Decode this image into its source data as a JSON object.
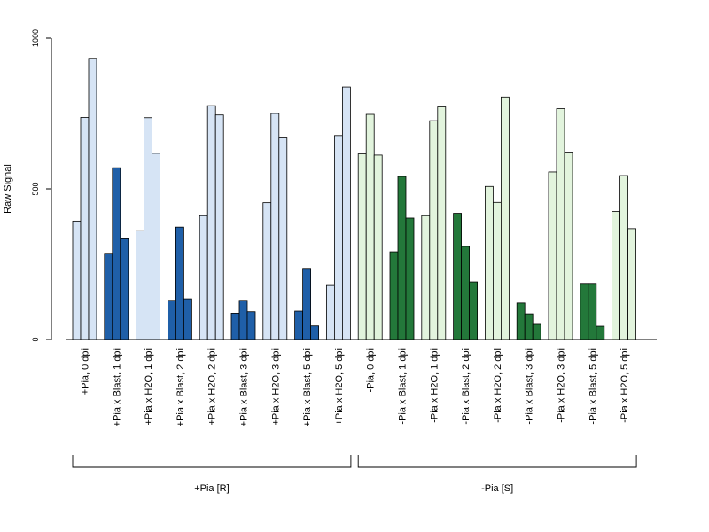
{
  "chart_data": {
    "type": "bar",
    "title": "",
    "xlabel": "",
    "ylabel": "Raw Signal",
    "ylim": [
      0,
      1000
    ],
    "yticks": [
      0,
      500,
      1000
    ],
    "grid": false,
    "legend": "none",
    "categories": [
      "+Pia, 0 dpi",
      "+Pia x Blast, 1 dpi",
      "+Pia x H2O, 1 dpi",
      "+Pia x Blast, 2 dpi",
      "+Pia x H2O, 2 dpi",
      "+Pia x Blast, 3 dpi",
      "+Pia x H2O, 3 dpi",
      "+Pia x Blast, 5 dpi",
      "+Pia x H2O, 5 dpi",
      "-Pia, 0 dpi",
      "-Pia x Blast, 1 dpi",
      "-Pia x H2O, 1 dpi",
      "-Pia x Blast, 2 dpi",
      "-Pia x H2O, 2 dpi",
      "-Pia x Blast, 3 dpi",
      "-Pia x H2O, 3 dpi",
      "-Pia x Blast, 5 dpi",
      "-Pia x H2O, 5 dpi"
    ],
    "replicates": [
      [
        393,
        737,
        933
      ],
      [
        286,
        570,
        337
      ],
      [
        361,
        736,
        618
      ],
      [
        130,
        373,
        135
      ],
      [
        411,
        776,
        745
      ],
      [
        87,
        130,
        92
      ],
      [
        454,
        750,
        669
      ],
      [
        94,
        236,
        45
      ],
      [
        182,
        677,
        838
      ],
      [
        616,
        747,
        612
      ],
      [
        291,
        541,
        403
      ],
      [
        411,
        726,
        772
      ],
      [
        419,
        309,
        191
      ],
      [
        508,
        455,
        805
      ],
      [
        121,
        85,
        53
      ],
      [
        556,
        766,
        622
      ],
      [
        186,
        186,
        44
      ],
      [
        425,
        544,
        368
      ]
    ],
    "bar_colors": [
      "#d6e4f5",
      "#1f5fa8",
      "#d6e4f5",
      "#1f5fa8",
      "#d6e4f5",
      "#1f5fa8",
      "#d6e4f5",
      "#1f5fa8",
      "#d6e4f5",
      "#e2f4dd",
      "#23783a",
      "#e2f4dd",
      "#23783a",
      "#e2f4dd",
      "#23783a",
      "#e2f4dd",
      "#23783a",
      "#e2f4dd"
    ],
    "groups": [
      {
        "label": "+Pia [R]",
        "first": 0,
        "last": 8
      },
      {
        "label": "-Pia [S]",
        "first": 9,
        "last": 17
      }
    ]
  }
}
